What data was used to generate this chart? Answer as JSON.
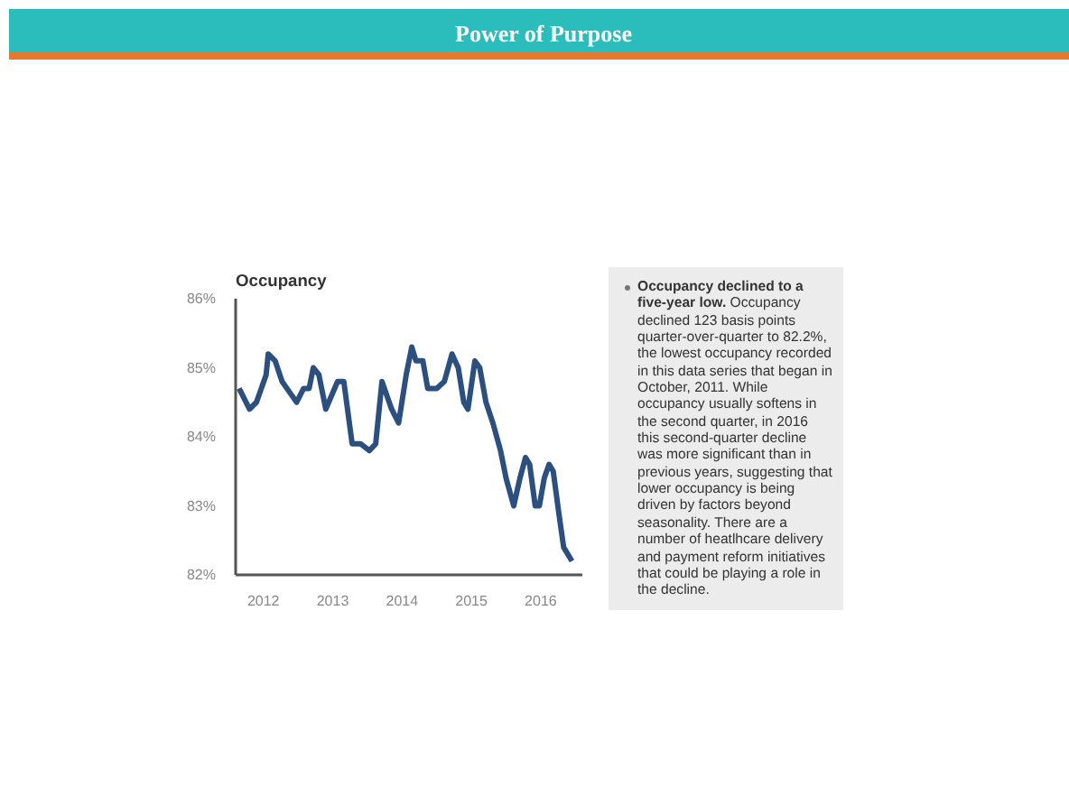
{
  "chart_data": {
    "type": "line",
    "title": "Occupancy",
    "annotations": [
      "Power of Purpose",
      "Occupancy declined to a five-year low.",
      "Occupancy declined 123 basis points quarter-over-quarter to 82.2%, the lowest occupancy recorded in this data series that began in October, 2011. While occupancy usually softens in the second quarter, in 2016 this second-quarter decline was more significant than in previous years, suggesting that lower occupancy is being driven by factors beyond seasonality. There are a number of heatlhcare delivery and payment reform initiatives that could be playing a role in the decline."
    ],
    "x": [
      2011.65,
      2011.8,
      2011.9,
      2012.04,
      2012.07,
      2012.17,
      2012.27,
      2012.41,
      2012.48,
      2012.58,
      2012.66,
      2012.72,
      2012.8,
      2012.9,
      2013.07,
      2013.16,
      2013.28,
      2013.4,
      2013.53,
      2013.62,
      2013.71,
      2013.85,
      2013.95,
      2014.06,
      2014.14,
      2014.2,
      2014.3,
      2014.37,
      2014.5,
      2014.61,
      2014.72,
      2014.81,
      2014.89,
      2014.95,
      2015.05,
      2015.12,
      2015.21,
      2015.31,
      2015.42,
      2015.5,
      2015.61,
      2015.7,
      2015.78,
      2015.84,
      2015.92,
      2015.98,
      2016.05,
      2016.12,
      2016.18,
      2016.26,
      2016.33,
      2016.45
    ],
    "series": [
      {
        "color": "#2b4f7e",
        "values": [
          84.7,
          84.4,
          84.5,
          84.9,
          85.2,
          85.1,
          84.8,
          84.6,
          84.5,
          84.7,
          84.7,
          85.0,
          84.9,
          84.4,
          84.8,
          84.8,
          83.9,
          83.9,
          83.8,
          83.9,
          84.8,
          84.4,
          84.2,
          84.9,
          85.3,
          85.1,
          85.1,
          84.7,
          84.7,
          84.8,
          85.2,
          85.0,
          84.5,
          84.4,
          85.1,
          85.0,
          84.5,
          84.2,
          83.8,
          83.4,
          83.0,
          83.4,
          83.7,
          83.6,
          83.0,
          83.0,
          83.4,
          83.6,
          83.5,
          82.9,
          82.4,
          82.2
        ]
      }
    ],
    "xlim": [
      2011.6,
      2016.6
    ],
    "xticks": [
      2012,
      2013,
      2014,
      2015,
      2016
    ],
    "ylim": [
      82,
      86
    ],
    "yticks": [
      {
        "value": 82,
        "label": "82%"
      },
      {
        "value": 83,
        "label": "83%"
      },
      {
        "value": 84,
        "label": "84%"
      },
      {
        "value": 85,
        "label": "85%"
      },
      {
        "value": 86,
        "label": "86%"
      }
    ],
    "grid": false
  }
}
